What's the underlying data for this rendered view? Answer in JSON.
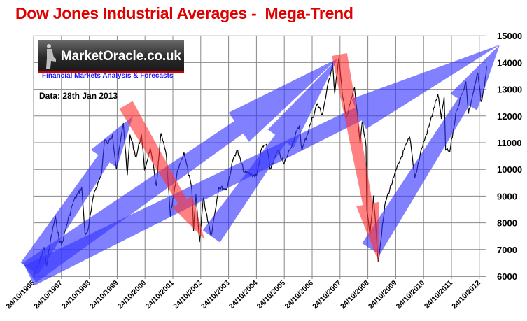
{
  "title": "Dow Jones Industrial Averages -  Mega-Trend",
  "logo": {
    "text": "MarketOracle.co.uk",
    "tagline": "Financial Markets Analysis & Forecasts"
  },
  "data_note": "Data: 28th Jan 2013",
  "colors": {
    "title": "#e00000",
    "up_arrow": "#3333ff",
    "down_arrow": "#ff3333",
    "line": "#000000",
    "grid": "#888888"
  },
  "chart_data": {
    "type": "line",
    "title": "Dow Jones Industrial Averages -  Mega-Trend",
    "xlabel": "",
    "ylabel": "",
    "ylim": [
      6000,
      15000
    ],
    "yticks": [
      6000,
      7000,
      8000,
      9000,
      10000,
      11000,
      12000,
      13000,
      14000,
      15000
    ],
    "xticks": [
      "24/10/1996",
      "24/10/1997",
      "24/10/1998",
      "24/10/1999",
      "24/10/2000",
      "24/10/2001",
      "24/10/2002",
      "24/10/2003",
      "24/10/2004",
      "24/10/2005",
      "24/10/2006",
      "24/10/2007",
      "24/10/2008",
      "24/10/2009",
      "24/10/2010",
      "24/10/2011",
      "24/10/2012"
    ],
    "grid": true,
    "legend": "none",
    "annotations": [
      "up-trend arrows (blue)",
      "down-trend arrows (red)"
    ],
    "series": [
      {
        "x": [
          "1996-10-24",
          "1996-12-31",
          "1997-03-10",
          "1997-04-14",
          "1997-06-01",
          "1997-08-06",
          "1997-09-01",
          "1997-10-27",
          "1997-12-31",
          "1998-03-31",
          "1998-07-17",
          "1998-08-31",
          "1998-10-08",
          "1998-12-31",
          "1999-03-31",
          "1999-05-13",
          "1999-06-30",
          "1999-08-25",
          "1999-10-15",
          "2000-01-14",
          "2000-03-07",
          "2000-04-11",
          "2000-06-30",
          "2000-09-06",
          "2000-10-18",
          "2000-12-31",
          "2001-03-22",
          "2001-05-21",
          "2001-07-31",
          "2001-09-21",
          "2001-12-31",
          "2002-03-19",
          "2002-06-30",
          "2002-07-23",
          "2002-08-22",
          "2002-10-09",
          "2002-11-27",
          "2003-03-11",
          "2003-06-17",
          "2003-09-30",
          "2003-12-31",
          "2004-02-11",
          "2004-05-17",
          "2004-08-12",
          "2004-10-25",
          "2004-12-31",
          "2005-03-04",
          "2005-04-20",
          "2005-08-02",
          "2005-10-20",
          "2005-12-31",
          "2006-05-10",
          "2006-06-13",
          "2006-09-30",
          "2006-12-31",
          "2007-03-05",
          "2007-07-19",
          "2007-08-16",
          "2007-10-09",
          "2007-11-26",
          "2008-01-22",
          "2008-05-02",
          "2008-07-15",
          "2008-08-11",
          "2008-09-30",
          "2008-10-10",
          "2008-11-20",
          "2009-01-06",
          "2009-03-09",
          "2009-06-12",
          "2009-09-30",
          "2009-12-31",
          "2010-04-26",
          "2010-07-02",
          "2010-09-30",
          "2010-12-31",
          "2011-04-29",
          "2011-06-15",
          "2011-07-21",
          "2011-08-10",
          "2011-10-03",
          "2011-12-31",
          "2012-05-01",
          "2012-06-04",
          "2012-10-05",
          "2012-11-15",
          "2012-12-31",
          "2013-01-28"
        ],
        "y": [
          6000,
          6450,
          7080,
          6390,
          7300,
          8250,
          7650,
          7160,
          7900,
          8800,
          9340,
          7540,
          7730,
          9180,
          9790,
          11100,
          10970,
          11300,
          10020,
          11720,
          9800,
          11290,
          10450,
          11310,
          9980,
          10790,
          9390,
          11340,
          10520,
          8240,
          10020,
          10630,
          9240,
          7700,
          9050,
          7290,
          8930,
          7520,
          9320,
          9270,
          10450,
          10730,
          9900,
          9820,
          9750,
          10780,
          10940,
          10010,
          10700,
          10200,
          10720,
          11640,
          10700,
          11680,
          12460,
          12050,
          14000,
          12850,
          14160,
          12740,
          11970,
          13060,
          10960,
          11780,
          10850,
          8450,
          7550,
          9010,
          6550,
          8800,
          9710,
          10430,
          11210,
          9690,
          10790,
          11580,
          12810,
          11900,
          12720,
          10720,
          10660,
          12220,
          13280,
          12100,
          13610,
          12540,
          13100,
          13880
        ]
      }
    ]
  }
}
